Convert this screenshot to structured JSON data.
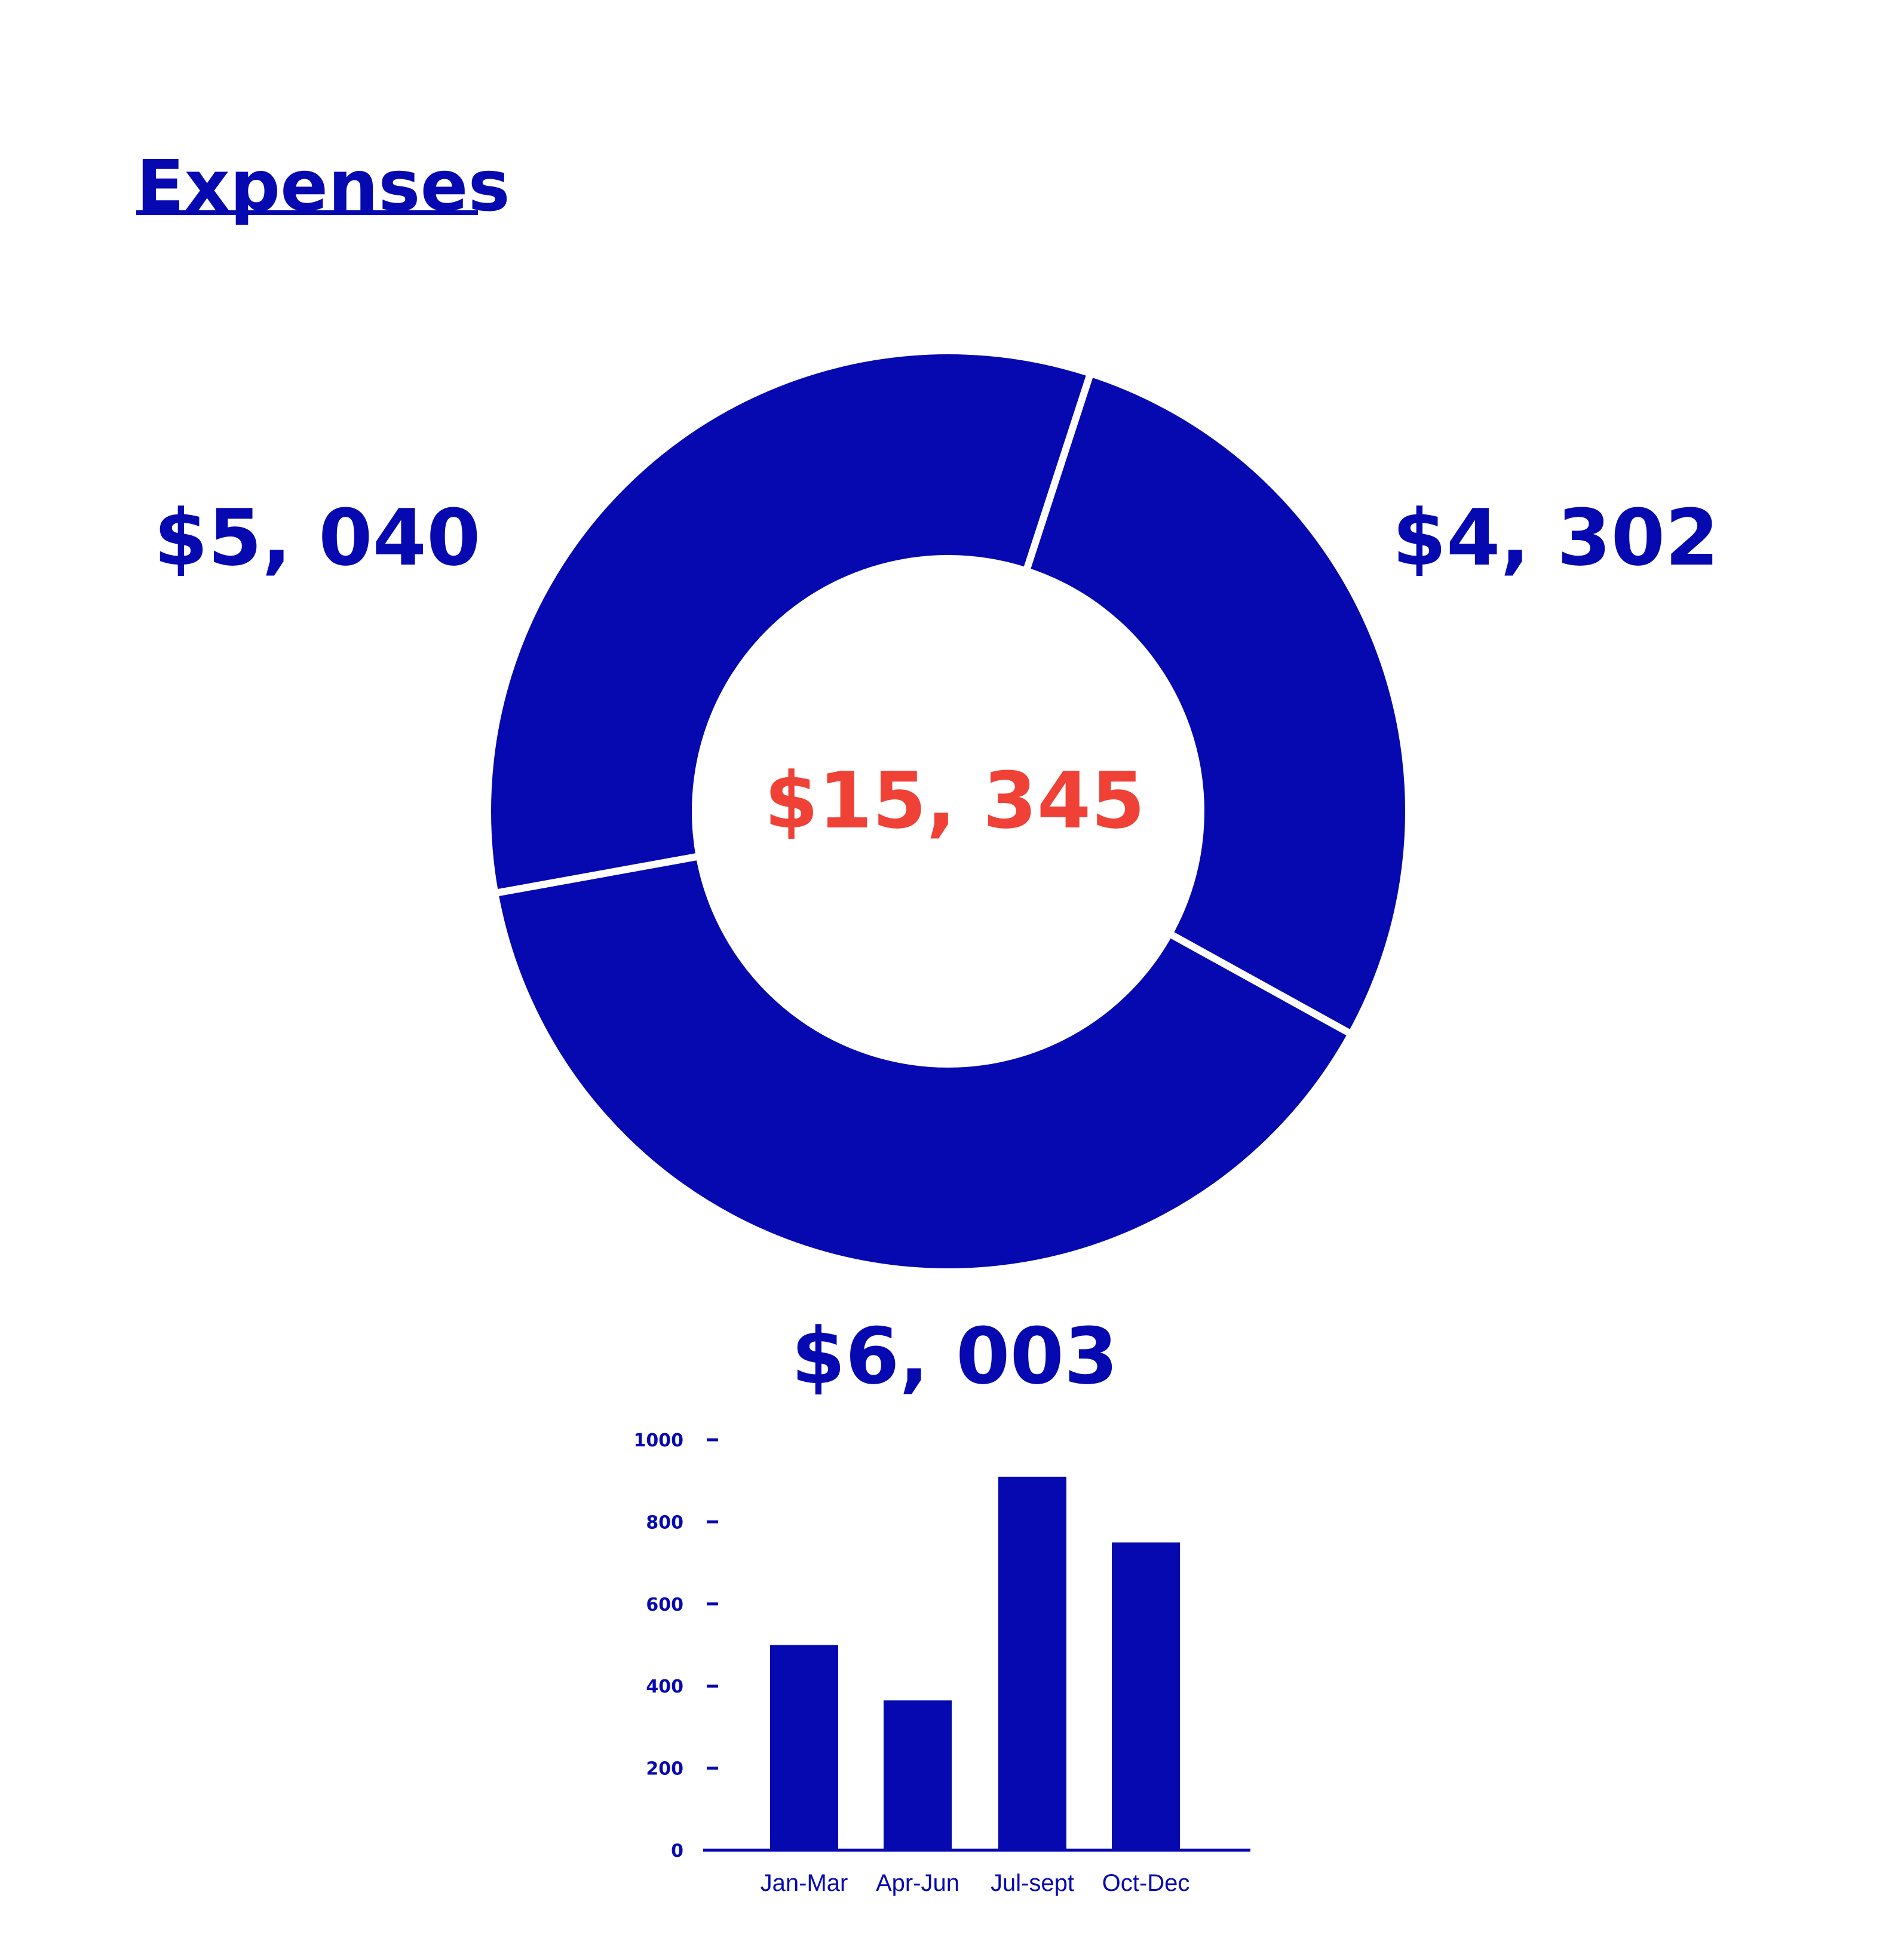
{
  "colors": {
    "primary": "#0609b0",
    "accent": "#ef4136",
    "background": "#ffffff"
  },
  "chart_data": [
    {
      "type": "pie",
      "variant": "donut",
      "title": "Expenses",
      "center_label": "$15, 345",
      "total": 15345,
      "slices": [
        {
          "label": "$4, 302",
          "value": 4302,
          "position": "right"
        },
        {
          "label": "$6, 003",
          "value": 6003,
          "position": "bottom"
        },
        {
          "label": "$5, 040",
          "value": 5040,
          "position": "left"
        }
      ]
    },
    {
      "type": "bar",
      "categories": [
        "Jan-Mar",
        "Apr-Jun",
        "Jul-sept",
        "Oct-Dec"
      ],
      "values": [
        500,
        365,
        910,
        750
      ],
      "yticks": [
        "0",
        "200",
        "400",
        "600",
        "800",
        "1000"
      ],
      "ylim": [
        0,
        1000
      ],
      "xlabel": "",
      "ylabel": "",
      "grid": false
    }
  ]
}
